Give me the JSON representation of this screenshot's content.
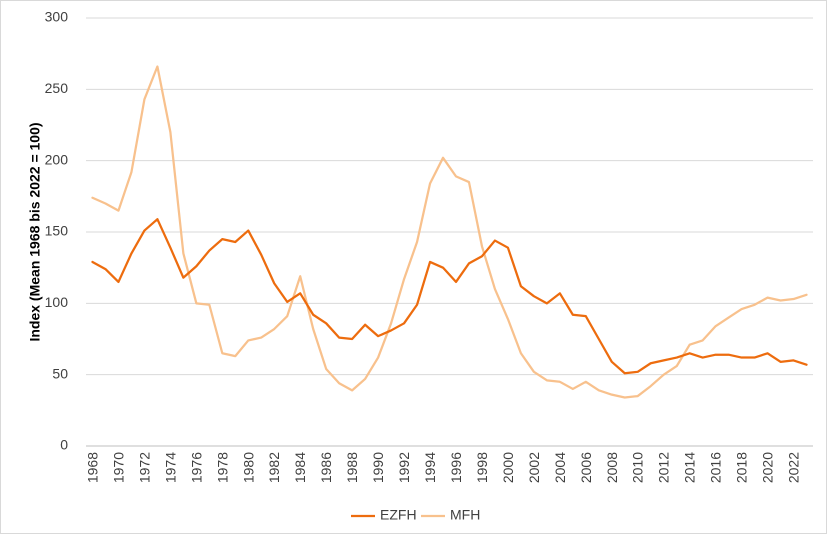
{
  "chart_data": {
    "type": "line",
    "title": "",
    "xlabel": "",
    "ylabel": "Index (Mean 1968 bis 2022 = 100)",
    "ylim": [
      0,
      300
    ],
    "yticks": [
      0,
      50,
      100,
      150,
      200,
      250,
      300
    ],
    "xticks": [
      "1968",
      "1970",
      "1972",
      "1974",
      "1976",
      "1978",
      "1980",
      "1982",
      "1984",
      "1986",
      "1988",
      "1990",
      "1992",
      "1994",
      "1996",
      "1998",
      "2000",
      "2002",
      "2004",
      "2006",
      "2008",
      "2010",
      "2012",
      "2014",
      "2016",
      "2018",
      "2020",
      "2022"
    ],
    "grid": "horizontal",
    "legend": "bottom",
    "x": [
      1968,
      1969,
      1970,
      1971,
      1972,
      1973,
      1974,
      1975,
      1976,
      1977,
      1978,
      1979,
      1980,
      1981,
      1982,
      1983,
      1984,
      1985,
      1986,
      1987,
      1988,
      1989,
      1990,
      1991,
      1992,
      1993,
      1994,
      1995,
      1996,
      1997,
      1998,
      1999,
      2000,
      2001,
      2002,
      2003,
      2004,
      2005,
      2006,
      2007,
      2008,
      2009,
      2010,
      2011,
      2012,
      2013,
      2014,
      2015,
      2016,
      2017,
      2018,
      2019,
      2020,
      2021,
      2022,
      2023
    ],
    "series": [
      {
        "name": "EZFH",
        "color": "#ed6c0e",
        "values": [
          129,
          124,
          115,
          135,
          151,
          159,
          139,
          118,
          126,
          137,
          145,
          143,
          151,
          134,
          114,
          101,
          107,
          92,
          86,
          76,
          75,
          85,
          77,
          81,
          86,
          99,
          129,
          125,
          115,
          128,
          133,
          144,
          139,
          112,
          105,
          100,
          107,
          92,
          91,
          75,
          59,
          51,
          52,
          58,
          60,
          62,
          65,
          62,
          64,
          64,
          62,
          62,
          65,
          59,
          60,
          57
        ]
      },
      {
        "name": "MFH",
        "color": "#f8c18d",
        "values": [
          174,
          170,
          165,
          192,
          243,
          266,
          220,
          135,
          100,
          99,
          65,
          63,
          74,
          76,
          82,
          91,
          119,
          82,
          54,
          44,
          39,
          47,
          62,
          86,
          117,
          143,
          184,
          202,
          189,
          185,
          140,
          110,
          89,
          65,
          52,
          46,
          45,
          40,
          45,
          39,
          36,
          34,
          35,
          42,
          50,
          56,
          71,
          74,
          84,
          90,
          96,
          99,
          104,
          102,
          103,
          106
        ]
      }
    ]
  }
}
